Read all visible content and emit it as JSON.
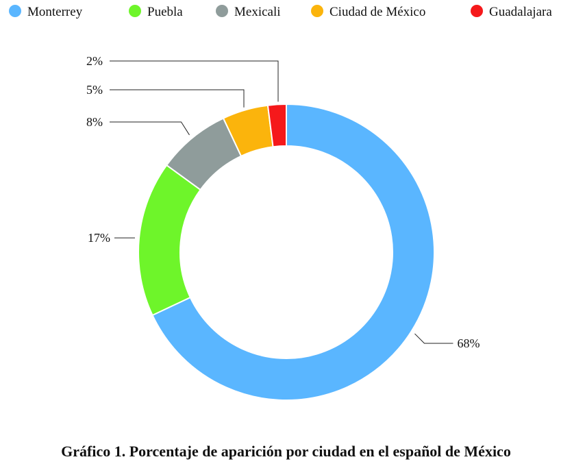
{
  "chart_data": {
    "type": "pie",
    "donut": true,
    "categories": [
      "Monterrey",
      "Puebla",
      "Mexicali",
      "Ciudad de México",
      "Guadalajara"
    ],
    "values": [
      68,
      17,
      8,
      5,
      2
    ],
    "labels": [
      "68%",
      "17%",
      "8%",
      "5%",
      "2%"
    ],
    "colors": [
      "#5ab6ff",
      "#6ef52a",
      "#8f9c9b",
      "#fbb40c",
      "#f5191b"
    ],
    "legend_position": "top",
    "start_angle": "12 o'clock, clockwise"
  },
  "caption": "Gráfico 1. Porcentaje de aparición por ciudad en el español de México"
}
